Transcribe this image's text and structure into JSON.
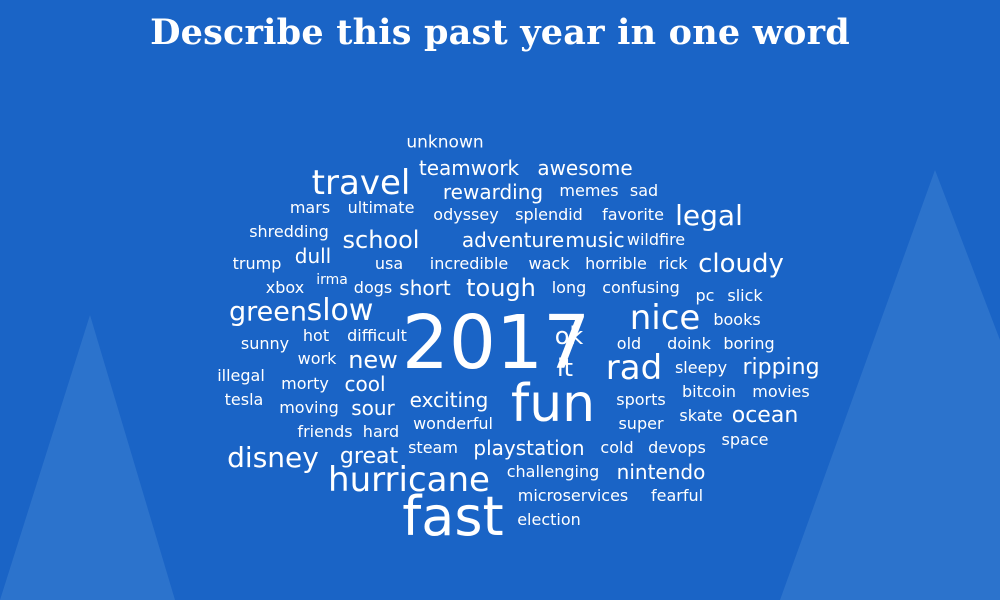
{
  "title": "Describe this past year in one word",
  "colors": {
    "background": "#1a64c6",
    "text": "#ffffff",
    "mountain": "#3d7fd1"
  },
  "words": [
    "unknown",
    "teamwork",
    "awesome",
    "travel",
    "rewarding",
    "memes",
    "sad",
    "mars",
    "ultimate",
    "odyssey",
    "splendid",
    "favorite",
    "legal",
    "shredding",
    "school",
    "adventure",
    "music",
    "wildfire",
    "dull",
    "trump",
    "usa",
    "incredible",
    "wack",
    "horrible",
    "rick",
    "cloudy",
    "irma",
    "xbox",
    "dogs",
    "short",
    "tough",
    "long",
    "confusing",
    "pc",
    "slick",
    "slow",
    "green",
    "2017",
    "nice",
    "books",
    "hot",
    "difficult",
    "ok",
    "sunny",
    "old",
    "doink",
    "boring",
    "new",
    "it",
    "rad",
    "work",
    "sleepy",
    "ripping",
    "illegal",
    "morty",
    "cool",
    "bitcoin",
    "movies",
    "tesla",
    "fun",
    "exciting",
    "sports",
    "moving",
    "sour",
    "skate",
    "ocean",
    "super",
    "wonderful",
    "friends",
    "hard",
    "space",
    "steam",
    "playstation",
    "cold",
    "devops",
    "disney",
    "great",
    "hurricane",
    "challenging",
    "nintendo",
    "microservices",
    "fearful",
    "fast",
    "election"
  ]
}
